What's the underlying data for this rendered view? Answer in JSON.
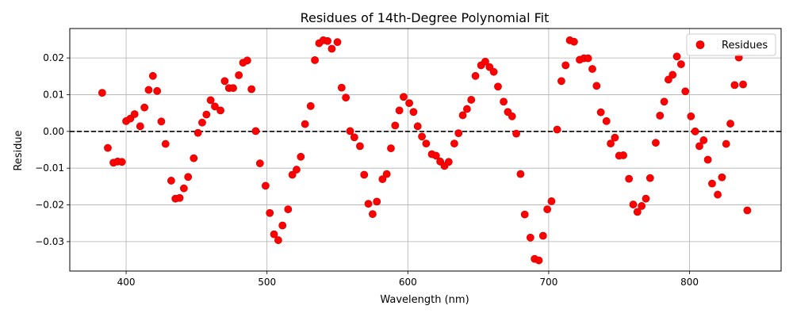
{
  "chart_data": {
    "type": "scatter",
    "title": "Residues of 14th-Degree Polynomial Fit",
    "xlabel": "Wavelength (nm)",
    "ylabel": "Residue",
    "xlim": [
      360,
      865
    ],
    "ylim": [
      -0.038,
      0.028
    ],
    "x_ticks": [
      400,
      500,
      600,
      700,
      800
    ],
    "x_tick_labels": [
      "400",
      "500",
      "600",
      "700",
      "800"
    ],
    "y_ticks": [
      -0.03,
      -0.02,
      -0.01,
      0.0,
      0.01,
      0.02
    ],
    "y_tick_labels": [
      "−0.03",
      "−0.02",
      "−0.01",
      "0.00",
      "0.01",
      "0.02"
    ],
    "grid": true,
    "legend": {
      "position": "top-right",
      "entries": [
        "Residues"
      ]
    },
    "reference_line": {
      "y": 0,
      "style": "dashed",
      "color": "#000000"
    },
    "colors": {
      "points": "#ff0000",
      "point_edge": "#cc0000"
    },
    "series": [
      {
        "name": "Residues",
        "points": [
          [
            383,
            0.0105
          ],
          [
            387,
            -0.0045
          ],
          [
            391,
            -0.0085
          ],
          [
            394,
            -0.0082
          ],
          [
            397,
            -0.0083
          ],
          [
            400,
            0.0028
          ],
          [
            403,
            0.0035
          ],
          [
            406,
            0.0047
          ],
          [
            410,
            0.0014
          ],
          [
            413,
            0.0065
          ],
          [
            416,
            0.0113
          ],
          [
            419,
            0.0151
          ],
          [
            422,
            0.011
          ],
          [
            425,
            0.0027
          ],
          [
            428,
            -0.0034
          ],
          [
            432,
            -0.0134
          ],
          [
            435,
            -0.0183
          ],
          [
            438,
            -0.0181
          ],
          [
            441,
            -0.0155
          ],
          [
            444,
            -0.0124
          ],
          [
            448,
            -0.0073
          ],
          [
            451,
            -0.0004
          ],
          [
            454,
            0.0024
          ],
          [
            457,
            0.0046
          ],
          [
            460,
            0.0085
          ],
          [
            463,
            0.0068
          ],
          [
            467,
            0.0057
          ],
          [
            470,
            0.0137
          ],
          [
            473,
            0.0118
          ],
          [
            476,
            0.0118
          ],
          [
            480,
            0.0153
          ],
          [
            483,
            0.0187
          ],
          [
            486,
            0.0193
          ],
          [
            489,
            0.0115
          ],
          [
            492,
            0.0001
          ],
          [
            495,
            -0.0087
          ],
          [
            499,
            -0.0148
          ],
          [
            502,
            -0.0222
          ],
          [
            505,
            -0.028
          ],
          [
            508,
            -0.0296
          ],
          [
            511,
            -0.0256
          ],
          [
            515,
            -0.0212
          ],
          [
            518,
            -0.0118
          ],
          [
            521,
            -0.0104
          ],
          [
            524,
            -0.0069
          ],
          [
            527,
            0.002
          ],
          [
            531,
            0.0069
          ],
          [
            534,
            0.0194
          ],
          [
            537,
            0.024
          ],
          [
            540,
            0.0248
          ],
          [
            543,
            0.0246
          ],
          [
            546,
            0.0225
          ],
          [
            550,
            0.0243
          ],
          [
            553,
            0.0119
          ],
          [
            556,
            0.0092
          ],
          [
            559,
            0.0001
          ],
          [
            562,
            -0.0016
          ],
          [
            566,
            -0.004
          ],
          [
            569,
            -0.0118
          ],
          [
            572,
            -0.0197
          ],
          [
            575,
            -0.0225
          ],
          [
            578,
            -0.0191
          ],
          [
            582,
            -0.013
          ],
          [
            585,
            -0.0116
          ],
          [
            588,
            -0.0046
          ],
          [
            591,
            0.0016
          ],
          [
            594,
            0.0057
          ],
          [
            597,
            0.0094
          ],
          [
            601,
            0.0077
          ],
          [
            604,
            0.0053
          ],
          [
            607,
            0.0014
          ],
          [
            610,
            -0.0014
          ],
          [
            613,
            -0.0033
          ],
          [
            617,
            -0.0062
          ],
          [
            620,
            -0.0066
          ],
          [
            623,
            -0.0082
          ],
          [
            626,
            -0.0094
          ],
          [
            629,
            -0.0083
          ],
          [
            633,
            -0.0033
          ],
          [
            636,
            -0.0005
          ],
          [
            639,
            0.0044
          ],
          [
            642,
            0.0061
          ],
          [
            645,
            0.0086
          ],
          [
            648,
            0.0151
          ],
          [
            652,
            0.018
          ],
          [
            655,
            0.019
          ],
          [
            658,
            0.0175
          ],
          [
            661,
            0.0162
          ],
          [
            664,
            0.0122
          ],
          [
            668,
            0.0081
          ],
          [
            671,
            0.0053
          ],
          [
            674,
            0.0041
          ],
          [
            677,
            -0.0006
          ],
          [
            680,
            -0.0116
          ],
          [
            683,
            -0.0226
          ],
          [
            687,
            -0.0289
          ],
          [
            690,
            -0.0347
          ],
          [
            693,
            -0.0351
          ],
          [
            696,
            -0.0284
          ],
          [
            699,
            -0.0212
          ],
          [
            702,
            -0.019
          ],
          [
            706,
            0.0005
          ],
          [
            709,
            0.0137
          ],
          [
            712,
            0.018
          ],
          [
            715,
            0.0248
          ],
          [
            718,
            0.0244
          ],
          [
            722,
            0.0195
          ],
          [
            725,
            0.0199
          ],
          [
            728,
            0.0199
          ],
          [
            731,
            0.017
          ],
          [
            734,
            0.0124
          ],
          [
            737,
            0.0052
          ],
          [
            741,
            0.0028
          ],
          [
            744,
            -0.0033
          ],
          [
            747,
            -0.0017
          ],
          [
            750,
            -0.0066
          ],
          [
            753,
            -0.0065
          ],
          [
            757,
            -0.0129
          ],
          [
            760,
            -0.0199
          ],
          [
            763,
            -0.0219
          ],
          [
            766,
            -0.0203
          ],
          [
            769,
            -0.0183
          ],
          [
            772,
            -0.0127
          ],
          [
            776,
            -0.0031
          ],
          [
            779,
            0.0043
          ],
          [
            782,
            0.0081
          ],
          [
            785,
            0.0141
          ],
          [
            788,
            0.0154
          ],
          [
            791,
            0.0204
          ],
          [
            794,
            0.0183
          ],
          [
            797,
            0.0109
          ],
          [
            801,
            0.0041
          ],
          [
            804,
            0.0
          ],
          [
            807,
            -0.004
          ],
          [
            810,
            -0.0024
          ],
          [
            813,
            -0.0077
          ],
          [
            816,
            -0.0142
          ],
          [
            820,
            -0.0172
          ],
          [
            823,
            -0.0125
          ],
          [
            826,
            -0.0034
          ],
          [
            829,
            0.0021
          ],
          [
            832,
            0.0126
          ],
          [
            835,
            0.0201
          ],
          [
            838,
            0.0128
          ],
          [
            841,
            -0.0215
          ]
        ]
      }
    ]
  }
}
